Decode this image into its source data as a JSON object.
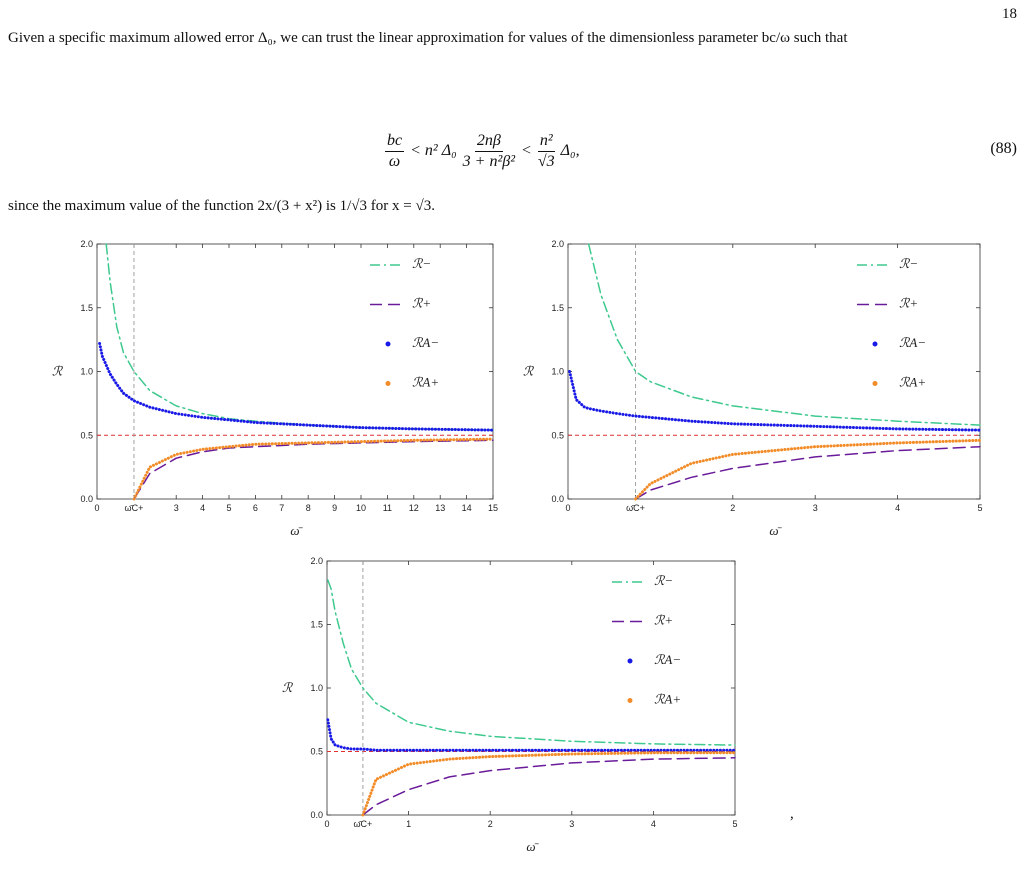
{
  "header": {
    "page_number": "18"
  },
  "body": {
    "paragraph_1": "Given a specific maximum allowed error Δ₀, we can trust the linear approximation for values of the dimensionless parameter bc/ω such that",
    "equation": {
      "parts": [
        "bc",
        "ω",
        "< n² Δ₀",
        "2nβ",
        "3 + n²β²",
        "<",
        "n²",
        "√3",
        "Δ₀,"
      ],
      "number": "(88)"
    },
    "paragraph_2": "since the maximum value of the function 2x/(3 + x²) is 1/√3 for x = √3.",
    "trailing_comma": ","
  },
  "chart_data": [
    {
      "type": "line",
      "x_label": "ω̄",
      "y_label": "ℛ",
      "xlim": [
        0,
        15
      ],
      "ylim": [
        0,
        2
      ],
      "xticks": [
        0,
        {
          "value": 1.4,
          "label": "ω̄C+"
        },
        3,
        4,
        5,
        6,
        7,
        8,
        9,
        10,
        11,
        12,
        13,
        14,
        15
      ],
      "yticks": [
        {
          "value": 0,
          "label": "0.0"
        },
        0.5,
        {
          "value": 1,
          "label": "1.0"
        },
        1.5,
        {
          "value": 2,
          "label": "2.0"
        }
      ],
      "hline": 0.5,
      "hline_color": "#e03030",
      "vline_color": "#999999",
      "x": [
        0.1,
        0.2,
        0.35,
        0.5,
        0.75,
        1,
        1.4,
        2,
        3,
        4,
        5,
        6,
        8,
        10,
        12,
        15
      ],
      "series": [
        {
          "name": "ℛ−",
          "color": "#3ec98e",
          "style": "dashdot",
          "values": [
            null,
            null,
            2.0,
            1.7,
            1.35,
            1.15,
            1.0,
            0.85,
            0.73,
            0.67,
            0.63,
            0.61,
            0.58,
            0.56,
            0.55,
            0.54
          ]
        },
        {
          "name": "ℛ+",
          "color": "#6a1b9a",
          "style": "dashed",
          "values": [
            null,
            null,
            null,
            null,
            null,
            null,
            0,
            0.2,
            0.32,
            0.37,
            0.4,
            0.41,
            0.43,
            0.44,
            0.45,
            0.46
          ]
        },
        {
          "name": "ℛA−",
          "color": "#1a1ae6",
          "style": "dots",
          "values": [
            1.22,
            1.12,
            1.05,
            0.98,
            0.9,
            0.83,
            0.77,
            0.72,
            0.67,
            0.64,
            0.62,
            0.6,
            0.58,
            0.56,
            0.55,
            0.54
          ]
        },
        {
          "name": "ℛA+",
          "color": "#f28c28",
          "style": "dots",
          "values": [
            null,
            null,
            null,
            null,
            null,
            null,
            0,
            0.25,
            0.35,
            0.39,
            0.41,
            0.43,
            0.44,
            0.45,
            0.46,
            0.47
          ]
        }
      ]
    },
    {
      "type": "line",
      "x_label": "ω̄",
      "y_label": "ℛ",
      "xlim": [
        0,
        5
      ],
      "ylim": [
        0,
        2
      ],
      "xticks": [
        0,
        {
          "value": 0.82,
          "label": "ω̄C+"
        },
        2,
        3,
        4,
        5
      ],
      "yticks": [
        {
          "value": 0,
          "label": "0.0"
        },
        0.5,
        {
          "value": 1,
          "label": "1.0"
        },
        1.5,
        {
          "value": 2,
          "label": "2.0"
        }
      ],
      "hline": 0.5,
      "hline_color": "#e03030",
      "vline_color": "#999999",
      "x": [
        0.02,
        0.1,
        0.2,
        0.25,
        0.4,
        0.6,
        0.82,
        1,
        1.5,
        2,
        3,
        4,
        5
      ],
      "series": [
        {
          "name": "ℛ−",
          "color": "#3ec98e",
          "style": "dashdot",
          "values": [
            null,
            null,
            null,
            2.0,
            1.6,
            1.25,
            1.0,
            0.92,
            0.8,
            0.73,
            0.65,
            0.61,
            0.58
          ]
        },
        {
          "name": "ℛ+",
          "color": "#6a1b9a",
          "style": "dashed",
          "values": [
            null,
            null,
            null,
            null,
            null,
            null,
            0,
            0.07,
            0.17,
            0.24,
            0.33,
            0.38,
            0.41
          ]
        },
        {
          "name": "ℛA−",
          "color": "#1a1ae6",
          "style": "dots",
          "values": [
            1.0,
            0.78,
            0.72,
            0.71,
            0.69,
            0.67,
            0.65,
            0.64,
            0.61,
            0.59,
            0.57,
            0.55,
            0.54
          ]
        },
        {
          "name": "ℛA+",
          "color": "#f28c28",
          "style": "dots",
          "values": [
            null,
            null,
            null,
            null,
            null,
            null,
            0,
            0.12,
            0.28,
            0.35,
            0.41,
            0.44,
            0.46
          ]
        }
      ]
    },
    {
      "type": "line",
      "x_label": "ω̄",
      "y_label": "ℛ",
      "xlim": [
        0,
        5
      ],
      "ylim": [
        0,
        2
      ],
      "xticks": [
        0,
        {
          "value": 0.44,
          "label": "ω̄C+"
        },
        1,
        2,
        3,
        4,
        5
      ],
      "yticks": [
        {
          "value": 0,
          "label": "0.0"
        },
        0.5,
        {
          "value": 1,
          "label": "1.0"
        },
        1.5,
        {
          "value": 2,
          "label": "2.0"
        }
      ],
      "hline": 0.5,
      "hline_color": "#e03030",
      "vline_color": "#999999",
      "x": [
        0.01,
        0.05,
        0.1,
        0.2,
        0.3,
        0.44,
        0.6,
        1,
        1.5,
        2,
        3,
        4,
        5
      ],
      "series": [
        {
          "name": "ℛ−",
          "color": "#3ec98e",
          "style": "dashdot",
          "values": [
            1.85,
            1.78,
            1.6,
            1.35,
            1.15,
            1.0,
            0.88,
            0.73,
            0.66,
            0.62,
            0.58,
            0.56,
            0.55
          ]
        },
        {
          "name": "ℛ+",
          "color": "#6a1b9a",
          "style": "dashed",
          "values": [
            null,
            null,
            null,
            null,
            null,
            0,
            0.08,
            0.2,
            0.3,
            0.35,
            0.41,
            0.44,
            0.45
          ]
        },
        {
          "name": "ℛA−",
          "color": "#1a1ae6",
          "style": "dots",
          "values": [
            0.75,
            0.6,
            0.55,
            0.53,
            0.52,
            0.52,
            0.51,
            0.51,
            0.51,
            0.51,
            0.51,
            0.51,
            0.51
          ]
        },
        {
          "name": "ℛA+",
          "color": "#f28c28",
          "style": "dots",
          "values": [
            null,
            null,
            null,
            null,
            null,
            0,
            0.28,
            0.4,
            0.44,
            0.46,
            0.48,
            0.49,
            0.49
          ]
        }
      ]
    }
  ]
}
